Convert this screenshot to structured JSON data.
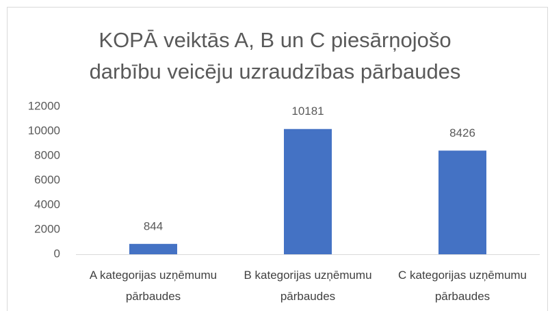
{
  "chart_data": {
    "type": "bar",
    "title": "KOPĀ veiktās A, B un C piesārņojošo darbību veicēju uzraudzības pārbaudes",
    "categories": [
      "A kategorijas uzņēmumu pārbaudes",
      "B kategorijas uzņēmumu pārbaudes",
      "C kategorijas uzņēmumu pārbaudes"
    ],
    "values": [
      844,
      10181,
      8426
    ],
    "color": "#4472c4",
    "ylim": [
      0,
      12000
    ],
    "yticks": [
      0,
      2000,
      4000,
      6000,
      8000,
      10000,
      12000
    ],
    "grid": false
  }
}
